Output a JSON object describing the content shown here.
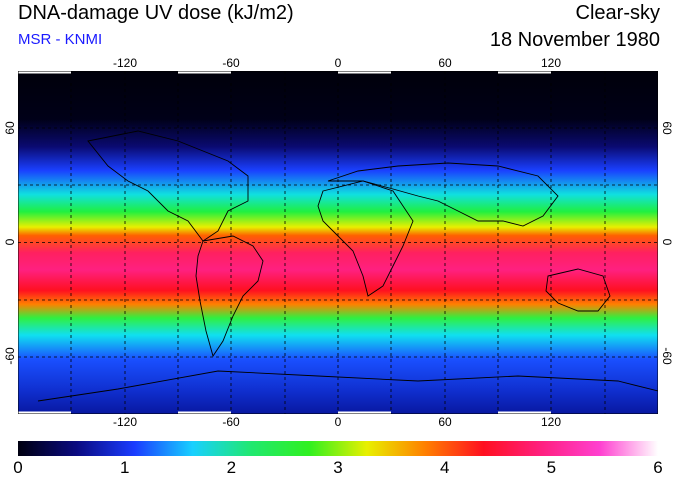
{
  "header": {
    "title": "DNA-damage UV dose (kJ/m2)",
    "subtitle": "MSR - KNMI",
    "sky": "Clear-sky",
    "date": "18 November 1980"
  },
  "map": {
    "lon_ticks": [
      "-120",
      "-60",
      "0",
      "60",
      "120"
    ],
    "lon_values": [
      -120,
      -60,
      0,
      60,
      120
    ],
    "lat_ticks": [
      "60",
      "0",
      "-60"
    ],
    "lat_values": [
      60,
      0,
      -60
    ],
    "lon_range": [
      -180,
      180
    ],
    "lat_range": [
      -90,
      90
    ]
  },
  "colorbar": {
    "labels": [
      "0",
      "1",
      "2",
      "3",
      "4",
      "5",
      "6"
    ],
    "range": [
      0,
      6
    ],
    "stops": [
      "#000010",
      "#0a0a80",
      "#1a3cff",
      "#18d0ff",
      "#20e870",
      "#30f020",
      "#e8f000",
      "#ff8000",
      "#ff1020",
      "#ff2080",
      "#ff40d0",
      "#ffffff"
    ]
  }
}
